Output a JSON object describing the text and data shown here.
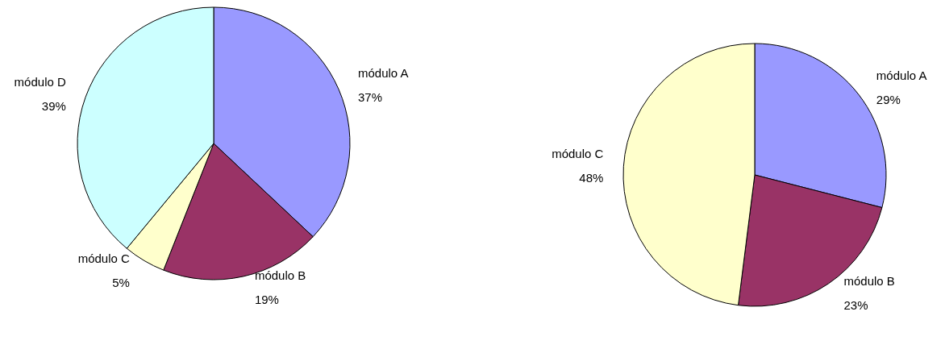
{
  "chart_data": [
    {
      "type": "pie",
      "categories": [
        "módulo A",
        "módulo B",
        "módulo C",
        "módulo D"
      ],
      "values": [
        37,
        19,
        5,
        39
      ],
      "value_labels": [
        "37%",
        "19%",
        "5%",
        "39%"
      ],
      "colors": [
        "#9999ff",
        "#993366",
        "#ffffcc",
        "#ccffff"
      ]
    },
    {
      "type": "pie",
      "categories": [
        "módulo A",
        "módulo B",
        "módulo C"
      ],
      "values": [
        29,
        23,
        48
      ],
      "value_labels": [
        "29%",
        "23%",
        "48%"
      ],
      "colors": [
        "#9999ff",
        "#993366",
        "#ffffcc"
      ]
    }
  ]
}
